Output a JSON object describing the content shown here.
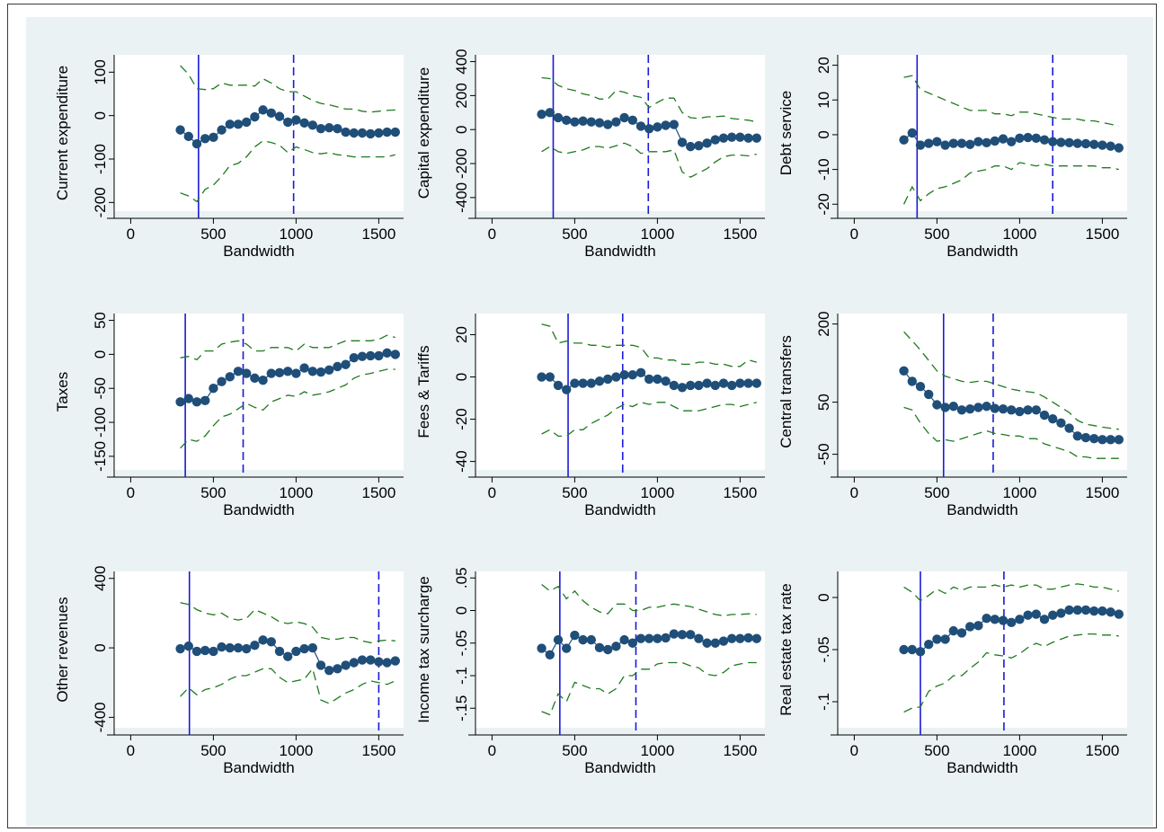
{
  "figure": {
    "background": "#eaf2f3",
    "colors": {
      "marker": "#1f4e79",
      "ci": "#1f7a1f",
      "vline": "#1a1ad8"
    }
  },
  "chart_data": [
    {
      "type": "scatter",
      "ylabel": "Current expenditure",
      "xlabel": "Bandwidth",
      "xlim": [
        -100,
        1650
      ],
      "xticks": [
        0,
        500,
        1000,
        1500
      ],
      "ylim": [
        -220,
        140
      ],
      "yticks": [
        -200,
        -100,
        0,
        100
      ],
      "yticklabels": [
        "-200",
        "-100",
        "0",
        "100"
      ],
      "x": [
        300,
        350,
        400,
        450,
        500,
        550,
        600,
        650,
        700,
        750,
        800,
        850,
        900,
        950,
        1000,
        1050,
        1100,
        1150,
        1200,
        1250,
        1300,
        1350,
        1400,
        1450,
        1500,
        1550,
        1600
      ],
      "estimate": [
        -33,
        -48,
        -65,
        -53,
        -50,
        -33,
        -20,
        -20,
        -15,
        -3,
        13,
        6,
        -2,
        -15,
        -10,
        -17,
        -22,
        -30,
        -28,
        -30,
        -38,
        -40,
        -40,
        -42,
        -40,
        -38,
        -38
      ],
      "ci_upper": [
        115,
        95,
        62,
        60,
        62,
        75,
        70,
        70,
        70,
        68,
        85,
        75,
        62,
        55,
        55,
        45,
        35,
        28,
        25,
        20,
        15,
        15,
        10,
        8,
        10,
        12,
        13
      ],
      "ci_lower": [
        -178,
        -185,
        -198,
        -170,
        -160,
        -140,
        -115,
        -110,
        -95,
        -72,
        -58,
        -62,
        -68,
        -85,
        -72,
        -78,
        -85,
        -88,
        -85,
        -90,
        -92,
        -95,
        -95,
        -95,
        -95,
        -95,
        -90
      ],
      "vline_solid": 410,
      "vline_dashed": 985
    },
    {
      "type": "scatter",
      "ylabel": "Capital expenditure",
      "xlabel": "Bandwidth",
      "xlim": [
        -100,
        1650
      ],
      "xticks": [
        0,
        500,
        1000,
        1500
      ],
      "ylim": [
        -480,
        440
      ],
      "yticks": [
        -400,
        -200,
        0,
        200,
        400
      ],
      "yticklabels": [
        "-400",
        "-200",
        "0",
        "200",
        "400"
      ],
      "x": [
        300,
        350,
        400,
        450,
        500,
        550,
        600,
        650,
        700,
        750,
        800,
        850,
        900,
        950,
        1000,
        1050,
        1100,
        1150,
        1200,
        1250,
        1300,
        1350,
        1400,
        1450,
        1500,
        1550,
        1600
      ],
      "estimate": [
        90,
        100,
        70,
        55,
        45,
        50,
        45,
        40,
        30,
        45,
        70,
        55,
        20,
        5,
        15,
        25,
        30,
        -75,
        -100,
        -95,
        -80,
        -60,
        -50,
        -45,
        -45,
        -50,
        -50
      ],
      "ci_upper": [
        305,
        300,
        260,
        240,
        230,
        210,
        200,
        180,
        180,
        230,
        220,
        200,
        190,
        130,
        160,
        185,
        185,
        100,
        70,
        65,
        75,
        75,
        80,
        65,
        60,
        55,
        45
      ],
      "ci_lower": [
        -130,
        -100,
        -130,
        -140,
        -130,
        -120,
        -100,
        -100,
        -110,
        -95,
        -80,
        -100,
        -140,
        -130,
        -130,
        -130,
        -120,
        -250,
        -280,
        -255,
        -230,
        -190,
        -160,
        -150,
        -150,
        -155,
        -145
      ],
      "vline_solid": 370,
      "vline_dashed": 945
    },
    {
      "type": "scatter",
      "ylabel": "Debt service",
      "xlabel": "Bandwidth",
      "xlim": [
        -100,
        1650
      ],
      "xticks": [
        0,
        500,
        1000,
        1500
      ],
      "ylim": [
        -22,
        23
      ],
      "yticks": [
        -20,
        -10,
        0,
        10,
        20
      ],
      "yticklabels": [
        "-20",
        "-10",
        "0",
        "10",
        "20"
      ],
      "x": [
        300,
        350,
        400,
        450,
        500,
        550,
        600,
        650,
        700,
        750,
        800,
        850,
        900,
        950,
        1000,
        1050,
        1100,
        1150,
        1200,
        1250,
        1300,
        1350,
        1400,
        1450,
        1500,
        1550,
        1600
      ],
      "estimate": [
        -1.5,
        0.5,
        -3,
        -2.5,
        -2,
        -3,
        -2.5,
        -2.5,
        -2.8,
        -2,
        -2.3,
        -1.8,
        -1.2,
        -2,
        -1,
        -0.8,
        -1,
        -1.5,
        -2,
        -2.2,
        -2.3,
        -2.5,
        -2.6,
        -2.8,
        -3,
        -3.3,
        -3.8
      ],
      "ci_upper": [
        16.5,
        17,
        13,
        12,
        11,
        10,
        9,
        8,
        7,
        7,
        7,
        6,
        6,
        5.5,
        6.5,
        6.5,
        6,
        5.5,
        5,
        4.5,
        4.5,
        4.5,
        4,
        4,
        3.5,
        3,
        2.5
      ],
      "ci_lower": [
        -20,
        -15,
        -19,
        -17,
        -15.5,
        -15,
        -14,
        -13,
        -11,
        -10.5,
        -10,
        -9,
        -9,
        -10,
        -8,
        -8.5,
        -9,
        -8.5,
        -9,
        -9,
        -9,
        -9,
        -9,
        -9,
        -9.5,
        -9.5,
        -10
      ],
      "vline_solid": 380,
      "vline_dashed": 1200
    },
    {
      "type": "scatter",
      "ylabel": "Taxes",
      "xlabel": "Bandwidth",
      "xlim": [
        -100,
        1650
      ],
      "xticks": [
        0,
        500,
        1000,
        1500
      ],
      "ylim": [
        -170,
        60
      ],
      "yticks": [
        -150,
        -100,
        -50,
        0,
        50
      ],
      "yticklabels": [
        "-150",
        "-100",
        "-50",
        "0",
        "50"
      ],
      "x": [
        300,
        350,
        400,
        450,
        500,
        550,
        600,
        650,
        700,
        750,
        800,
        850,
        900,
        950,
        1000,
        1050,
        1100,
        1150,
        1200,
        1250,
        1300,
        1350,
        1400,
        1450,
        1500,
        1550,
        1600
      ],
      "estimate": [
        -70,
        -65,
        -70,
        -68,
        -50,
        -40,
        -33,
        -25,
        -28,
        -35,
        -38,
        -28,
        -27,
        -25,
        -28,
        -20,
        -25,
        -26,
        -23,
        -18,
        -15,
        -5,
        -3,
        -2,
        -2,
        2,
        0
      ],
      "ci_upper": [
        -5,
        -3,
        -8,
        5,
        5,
        15,
        18,
        20,
        15,
        5,
        5,
        10,
        10,
        10,
        5,
        15,
        10,
        10,
        10,
        15,
        20,
        20,
        20,
        20,
        22,
        28,
        25
      ],
      "ci_lower": [
        -138,
        -125,
        -128,
        -120,
        -105,
        -92,
        -88,
        -80,
        -72,
        -78,
        -82,
        -70,
        -65,
        -60,
        -62,
        -55,
        -60,
        -58,
        -55,
        -50,
        -45,
        -35,
        -30,
        -28,
        -25,
        -22,
        -22
      ],
      "vline_solid": 330,
      "vline_dashed": 680
    },
    {
      "type": "scatter",
      "ylabel": "Fees & Tariffs",
      "xlabel": "Bandwidth",
      "xlim": [
        -100,
        1650
      ],
      "xticks": [
        0,
        500,
        1000,
        1500
      ],
      "ylim": [
        -44,
        30
      ],
      "yticks": [
        -40,
        -20,
        0,
        20
      ],
      "yticklabels": [
        "-40",
        "-20",
        "0",
        "20"
      ],
      "x": [
        300,
        350,
        400,
        450,
        500,
        550,
        600,
        650,
        700,
        750,
        800,
        850,
        900,
        950,
        1000,
        1050,
        1100,
        1150,
        1200,
        1250,
        1300,
        1350,
        1400,
        1450,
        1500,
        1550,
        1600
      ],
      "estimate": [
        0,
        0,
        -4,
        -6,
        -3,
        -3,
        -3,
        -2,
        -1,
        0,
        1,
        1,
        2,
        -1,
        -1,
        -2,
        -4,
        -5,
        -4,
        -4,
        -3,
        -4,
        -3,
        -4,
        -3,
        -3,
        -3
      ],
      "ci_upper": [
        25,
        24,
        16,
        17,
        16,
        16,
        15,
        15,
        14,
        15,
        15,
        15,
        14,
        9,
        9,
        8,
        8,
        6,
        6,
        7,
        7,
        6,
        6,
        5,
        5,
        8,
        7
      ],
      "ci_lower": [
        -27,
        -25,
        -28,
        -28,
        -25,
        -25,
        -22,
        -20,
        -18,
        -15,
        -13,
        -14,
        -12,
        -13,
        -12,
        -12,
        -14,
        -16,
        -16,
        -16,
        -15,
        -14,
        -13,
        -13,
        -14,
        -13,
        -12
      ],
      "vline_solid": 460,
      "vline_dashed": 790
    },
    {
      "type": "scatter",
      "ylabel": "Central transfers",
      "xlabel": "Bandwidth",
      "xlim": [
        -100,
        1650
      ],
      "xticks": [
        0,
        500,
        1000,
        1500
      ],
      "ylim": [
        -80,
        220
      ],
      "yticks": [
        -50,
        50,
        200
      ],
      "yticklabels": [
        "-50",
        "50",
        "200"
      ],
      "x": [
        300,
        350,
        400,
        450,
        500,
        550,
        600,
        650,
        700,
        750,
        800,
        850,
        900,
        950,
        1000,
        1050,
        1100,
        1150,
        1200,
        1250,
        1300,
        1350,
        1400,
        1450,
        1500,
        1550,
        1600
      ],
      "estimate": [
        110,
        90,
        80,
        65,
        45,
        40,
        42,
        35,
        37,
        40,
        42,
        38,
        37,
        35,
        32,
        35,
        35,
        25,
        18,
        10,
        0,
        -15,
        -18,
        -20,
        -22,
        -22,
        -22
      ],
      "ci_upper": [
        185,
        168,
        150,
        130,
        110,
        100,
        95,
        90,
        88,
        90,
        90,
        85,
        80,
        75,
        72,
        70,
        68,
        60,
        50,
        40,
        30,
        15,
        8,
        5,
        2,
        0,
        -2
      ],
      "ci_lower": [
        40,
        35,
        10,
        -10,
        -25,
        -22,
        -25,
        -20,
        -15,
        -10,
        -5,
        -10,
        -12,
        -15,
        -15,
        -20,
        -20,
        -30,
        -35,
        -40,
        -45,
        -55,
        -55,
        -58,
        -58,
        -58,
        -58
      ],
      "vline_solid": 540,
      "vline_dashed": 840
    },
    {
      "type": "scatter",
      "ylabel": "Other revenues",
      "xlabel": "Bandwidth",
      "xlim": [
        -100,
        1650
      ],
      "xticks": [
        0,
        500,
        1000,
        1500
      ],
      "ylim": [
        -460,
        440
      ],
      "yticks": [
        -400,
        0,
        400
      ],
      "yticklabels": [
        "-400",
        "0",
        "400"
      ],
      "x": [
        300,
        350,
        400,
        450,
        500,
        550,
        600,
        650,
        700,
        750,
        800,
        850,
        900,
        950,
        1000,
        1050,
        1100,
        1150,
        1200,
        1250,
        1300,
        1350,
        1400,
        1450,
        1500,
        1550,
        1600
      ],
      "estimate": [
        -5,
        10,
        -20,
        -15,
        -20,
        5,
        0,
        0,
        -5,
        15,
        45,
        35,
        -20,
        -50,
        -20,
        -5,
        0,
        -100,
        -130,
        -120,
        -100,
        -85,
        -70,
        -70,
        -80,
        -85,
        -75
      ],
      "ci_upper": [
        260,
        250,
        220,
        200,
        190,
        200,
        170,
        160,
        170,
        220,
        200,
        180,
        150,
        140,
        150,
        140,
        120,
        60,
        50,
        50,
        60,
        60,
        40,
        30,
        40,
        45,
        40
      ],
      "ci_lower": [
        -280,
        -230,
        -270,
        -240,
        -230,
        -210,
        -180,
        -160,
        -160,
        -140,
        -120,
        -120,
        -170,
        -200,
        -190,
        -180,
        -120,
        -300,
        -320,
        -290,
        -260,
        -240,
        -210,
        -190,
        -200,
        -210,
        -190
      ],
      "vline_solid": 355,
      "vline_dashed": 1500
    },
    {
      "type": "scatter",
      "ylabel": "Income tax surcharge",
      "xlabel": "Bandwidth",
      "xlim": [
        -100,
        1650
      ],
      "xticks": [
        0,
        500,
        1000,
        1500
      ],
      "ylim": [
        -0.18,
        0.06
      ],
      "yticks": [
        -0.15,
        -0.1,
        -0.05,
        0,
        0.05
      ],
      "yticklabels": [
        "-.15",
        "-.1",
        "-.05",
        "0",
        ".05"
      ],
      "x": [
        300,
        350,
        400,
        450,
        500,
        550,
        600,
        650,
        700,
        750,
        800,
        850,
        900,
        950,
        1000,
        1050,
        1100,
        1150,
        1200,
        1250,
        1300,
        1350,
        1400,
        1450,
        1500,
        1550,
        1600
      ],
      "estimate": [
        -0.058,
        -0.068,
        -0.045,
        -0.058,
        -0.038,
        -0.045,
        -0.045,
        -0.057,
        -0.06,
        -0.055,
        -0.045,
        -0.05,
        -0.043,
        -0.043,
        -0.043,
        -0.042,
        -0.036,
        -0.037,
        -0.037,
        -0.043,
        -0.05,
        -0.05,
        -0.047,
        -0.043,
        -0.043,
        -0.042,
        -0.043
      ],
      "ci_upper": [
        0.04,
        0.03,
        0.037,
        0.018,
        0.03,
        0.015,
        0.005,
        -0.002,
        -0.005,
        0.01,
        0.01,
        0.0,
        0.0,
        0.005,
        0.005,
        0.008,
        0.01,
        0.008,
        0.006,
        0.002,
        -0.002,
        -0.006,
        -0.008,
        -0.006,
        -0.006,
        -0.005,
        -0.006
      ],
      "ci_lower": [
        -0.155,
        -0.16,
        -0.128,
        -0.14,
        -0.11,
        -0.115,
        -0.12,
        -0.12,
        -0.128,
        -0.12,
        -0.1,
        -0.1,
        -0.09,
        -0.09,
        -0.082,
        -0.08,
        -0.08,
        -0.08,
        -0.085,
        -0.088,
        -0.098,
        -0.1,
        -0.095,
        -0.085,
        -0.082,
        -0.08,
        -0.08
      ],
      "vline_solid": 410,
      "vline_dashed": 870
    },
    {
      "type": "scatter",
      "ylabel": "Real estate tax rate",
      "xlabel": "Bandwidth",
      "xlim": [
        -100,
        1650
      ],
      "xticks": [
        0,
        500,
        1000,
        1500
      ],
      "ylim": [
        -0.125,
        0.025
      ],
      "yticks": [
        -0.1,
        -0.05,
        0
      ],
      "yticklabels": [
        "-.1",
        "-.05",
        "0"
      ],
      "x": [
        300,
        350,
        400,
        450,
        500,
        550,
        600,
        650,
        700,
        750,
        800,
        850,
        900,
        950,
        1000,
        1050,
        1100,
        1150,
        1200,
        1250,
        1300,
        1350,
        1400,
        1450,
        1500,
        1550,
        1600
      ],
      "estimate": [
        -0.05,
        -0.05,
        -0.052,
        -0.045,
        -0.04,
        -0.04,
        -0.032,
        -0.034,
        -0.028,
        -0.027,
        -0.02,
        -0.021,
        -0.022,
        -0.024,
        -0.021,
        -0.017,
        -0.016,
        -0.021,
        -0.017,
        -0.015,
        -0.012,
        -0.012,
        -0.012,
        -0.013,
        -0.013,
        -0.014,
        -0.016
      ],
      "ci_upper": [
        0.01,
        0.005,
        -0.003,
        0.002,
        0.008,
        0.004,
        0.01,
        0.007,
        0.01,
        0.01,
        0.01,
        0.012,
        0.01,
        0.012,
        0.01,
        0.012,
        0.012,
        0.008,
        0.008,
        0.01,
        0.012,
        0.013,
        0.012,
        0.01,
        0.01,
        0.008,
        0.006
      ],
      "ci_lower": [
        -0.11,
        -0.106,
        -0.105,
        -0.09,
        -0.085,
        -0.082,
        -0.075,
        -0.075,
        -0.068,
        -0.062,
        -0.053,
        -0.055,
        -0.056,
        -0.058,
        -0.054,
        -0.048,
        -0.044,
        -0.047,
        -0.043,
        -0.04,
        -0.037,
        -0.036,
        -0.035,
        -0.035,
        -0.036,
        -0.036,
        -0.037
      ],
      "vline_solid": 400,
      "vline_dashed": 905
    }
  ]
}
